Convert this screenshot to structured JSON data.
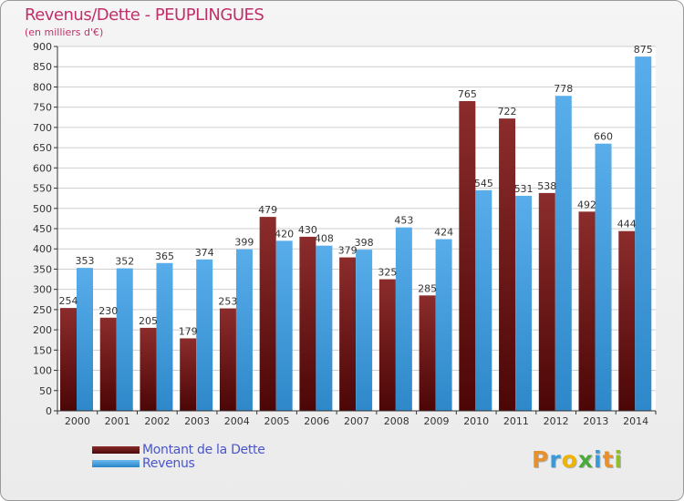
{
  "chart_data": {
    "type": "bar",
    "title": "Revenus/Dette - PEUPLINGUES",
    "subtitle": "(en milliers d'€)",
    "categories": [
      "2000",
      "2001",
      "2002",
      "2003",
      "2004",
      "2005",
      "2006",
      "2007",
      "2008",
      "2009",
      "2010",
      "2011",
      "2012",
      "2013",
      "2014"
    ],
    "series": [
      {
        "name": "Montant de la Dette",
        "color": "#7a1c1c",
        "values": [
          254,
          230,
          205,
          179,
          253,
          479,
          430,
          379,
          325,
          285,
          765,
          722,
          538,
          492,
          444
        ]
      },
      {
        "name": "Revenus",
        "color": "#4aa3e3",
        "values": [
          353,
          352,
          365,
          374,
          399,
          420,
          408,
          398,
          453,
          424,
          545,
          531,
          778,
          660,
          875
        ]
      }
    ],
    "ylim": [
      0,
      900
    ],
    "yticks": [
      0,
      50,
      100,
      150,
      200,
      250,
      300,
      350,
      400,
      450,
      500,
      550,
      600,
      650,
      700,
      750,
      800,
      850,
      900
    ],
    "xlabel": "",
    "ylabel": "",
    "legend_position": "bottom-left",
    "grid": true
  },
  "logo": {
    "text": "Proxiti",
    "letters": [
      "P",
      "r",
      "o",
      "x",
      "i",
      "t",
      "i"
    ],
    "colors": [
      "#e8912a",
      "#3a9ad9",
      "#f0b400",
      "#4aa83c",
      "#3a9ad9",
      "#e8912a",
      "#8fbf2a"
    ]
  }
}
